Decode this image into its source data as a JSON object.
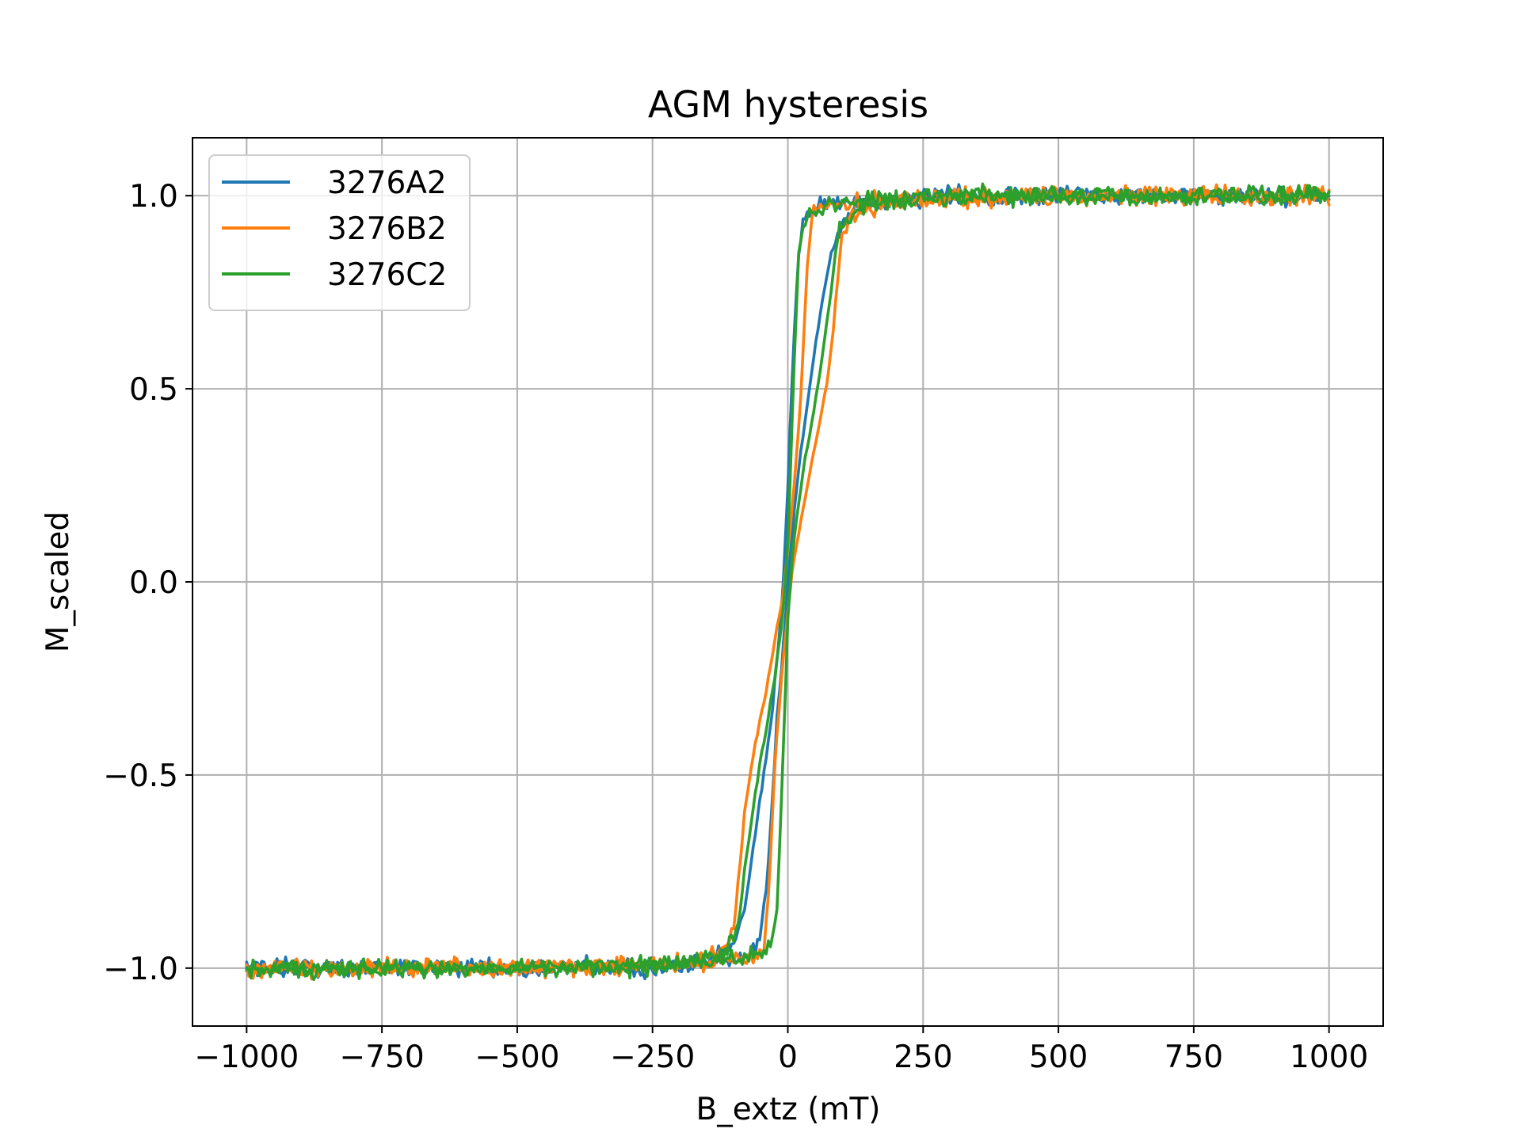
{
  "chart_data": {
    "type": "line",
    "title": "AGM hysteresis",
    "xlabel": "B_extz (mT)",
    "ylabel": "M_scaled",
    "xlim": [
      -1100,
      1100
    ],
    "ylim": [
      -1.15,
      1.15
    ],
    "x_ticks": [
      -1000,
      -750,
      -500,
      -250,
      0,
      250,
      500,
      750,
      1000
    ],
    "x_tick_labels": [
      "−1000",
      "−750",
      "−500",
      "−250",
      "0",
      "250",
      "500",
      "750",
      "1000"
    ],
    "y_ticks": [
      -1.0,
      -0.5,
      0.0,
      0.5,
      1.0
    ],
    "y_tick_labels": [
      "−1.0",
      "−0.5",
      "0.0",
      "0.5",
      "1.0"
    ],
    "grid": true,
    "legend_position": "top-left",
    "series": [
      {
        "name": "3276A2",
        "color": "#1f77b4",
        "x_descending": [
          1000,
          750,
          500,
          250,
          200,
          150,
          100,
          60,
          40,
          30,
          20,
          10,
          0,
          -10,
          -20,
          -30,
          -40,
          -50,
          -60,
          -70,
          -80,
          -100,
          -120,
          -150,
          -200,
          -250,
          -500,
          -750,
          -1000
        ],
        "y_descending": [
          1.0,
          1.0,
          1.0,
          0.99,
          0.99,
          0.985,
          0.98,
          0.97,
          0.96,
          0.94,
          0.85,
          0.6,
          0.25,
          -0.05,
          -0.2,
          -0.35,
          -0.45,
          -0.55,
          -0.65,
          -0.75,
          -0.85,
          -0.93,
          -0.96,
          -0.98,
          -0.99,
          -1.0,
          -1.0,
          -1.0,
          -1.0
        ],
        "x_ascending": [
          -1000,
          -750,
          -500,
          -250,
          -200,
          -150,
          -100,
          -80,
          -60,
          -50,
          -40,
          -30,
          -20,
          -10,
          0,
          10,
          20,
          30,
          40,
          50,
          60,
          80,
          100,
          120,
          150,
          200,
          250,
          500,
          750,
          1000
        ],
        "y_ascending": [
          -1.0,
          -1.0,
          -1.0,
          -0.99,
          -0.99,
          -0.985,
          -0.98,
          -0.97,
          -0.95,
          -0.9,
          -0.8,
          -0.6,
          -0.35,
          -0.2,
          0.0,
          0.15,
          0.3,
          0.4,
          0.5,
          0.6,
          0.7,
          0.85,
          0.93,
          0.96,
          0.98,
          0.99,
          1.0,
          1.0,
          1.0,
          1.0
        ]
      },
      {
        "name": "3276B2",
        "color": "#ff7f0e",
        "x_descending": [
          1000,
          750,
          500,
          250,
          200,
          150,
          100,
          80,
          60,
          45,
          35,
          25,
          15,
          5,
          0,
          -10,
          -20,
          -30,
          -40,
          -50,
          -60,
          -70,
          -80,
          -90,
          -100,
          -120,
          -150,
          -200,
          -250,
          -500,
          -750,
          -1000
        ],
        "y_descending": [
          1.0,
          1.0,
          1.0,
          0.99,
          0.99,
          0.985,
          0.98,
          0.975,
          0.97,
          0.95,
          0.8,
          0.5,
          0.3,
          0.15,
          0.08,
          -0.05,
          -0.12,
          -0.2,
          -0.28,
          -0.35,
          -0.42,
          -0.5,
          -0.6,
          -0.75,
          -0.9,
          -0.95,
          -0.97,
          -0.985,
          -0.99,
          -1.0,
          -1.0,
          -1.0
        ],
        "x_ascending": [
          -1000,
          -750,
          -500,
          -250,
          -200,
          -150,
          -100,
          -80,
          -60,
          -45,
          -35,
          -25,
          -15,
          -5,
          0,
          10,
          20,
          30,
          40,
          50,
          60,
          70,
          80,
          90,
          100,
          120,
          150,
          200,
          250,
          500,
          750,
          1000
        ],
        "y_ascending": [
          -1.0,
          -1.0,
          -1.0,
          -0.99,
          -0.99,
          -0.985,
          -0.98,
          -0.975,
          -0.97,
          -0.95,
          -0.8,
          -0.5,
          -0.3,
          -0.15,
          -0.08,
          0.05,
          0.12,
          0.2,
          0.28,
          0.35,
          0.42,
          0.5,
          0.6,
          0.75,
          0.9,
          0.95,
          0.97,
          0.985,
          0.99,
          1.0,
          1.0,
          1.0
        ]
      },
      {
        "name": "3276C2",
        "color": "#2ca02c",
        "x_descending": [
          1000,
          750,
          500,
          250,
          200,
          150,
          100,
          70,
          50,
          40,
          30,
          20,
          10,
          0,
          -10,
          -20,
          -30,
          -40,
          -50,
          -60,
          -70,
          -80,
          -90,
          -100,
          -120,
          -150,
          -200,
          -250,
          -500,
          -750,
          -1000
        ],
        "y_descending": [
          1.0,
          1.0,
          1.0,
          0.99,
          0.99,
          0.985,
          0.98,
          0.97,
          0.96,
          0.95,
          0.93,
          0.85,
          0.5,
          0.1,
          -0.1,
          -0.2,
          -0.3,
          -0.38,
          -0.46,
          -0.55,
          -0.65,
          -0.75,
          -0.88,
          -0.93,
          -0.96,
          -0.98,
          -0.99,
          -1.0,
          -1.0,
          -1.0,
          -1.0
        ],
        "x_ascending": [
          -1000,
          -750,
          -500,
          -250,
          -200,
          -150,
          -100,
          -70,
          -50,
          -40,
          -30,
          -20,
          -10,
          0,
          10,
          20,
          30,
          40,
          50,
          60,
          70,
          80,
          90,
          100,
          120,
          150,
          200,
          250,
          500,
          750,
          1000
        ],
        "y_ascending": [
          -1.0,
          -1.0,
          -1.0,
          -0.99,
          -0.99,
          -0.985,
          -0.98,
          -0.97,
          -0.96,
          -0.95,
          -0.93,
          -0.85,
          -0.5,
          -0.1,
          0.1,
          0.2,
          0.3,
          0.38,
          0.46,
          0.55,
          0.65,
          0.75,
          0.88,
          0.93,
          0.96,
          0.98,
          0.99,
          1.0,
          1.0,
          1.0,
          1.0
        ]
      }
    ]
  }
}
